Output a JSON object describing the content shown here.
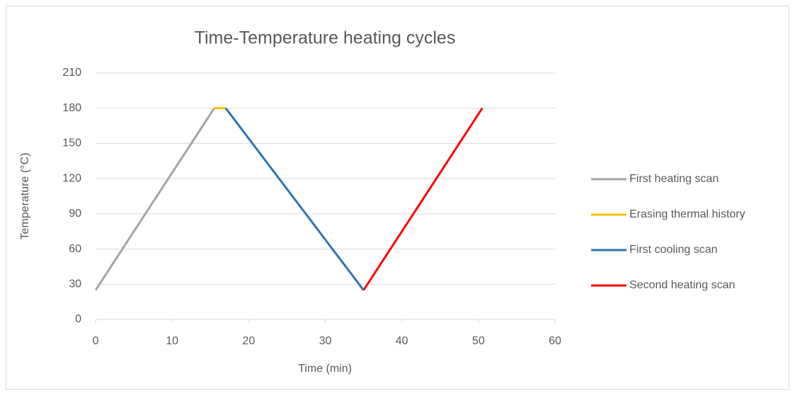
{
  "chart_data": {
    "type": "line",
    "title": "Time-Temperature heating cycles",
    "x_label": "Time (min)",
    "y_label": "Temperature (°C)",
    "series": [
      {
        "name": "First heating scan",
        "color": "#a5a5a5",
        "x": [
          0,
          15.5
        ],
        "values": [
          25,
          180
        ]
      },
      {
        "name": "Erasing thermal history",
        "color": "#ffc000",
        "x": [
          15.5,
          17
        ],
        "values": [
          180,
          180
        ]
      },
      {
        "name": "First cooling scan",
        "color": "#2e75b6",
        "x": [
          17,
          35
        ],
        "values": [
          180,
          25
        ]
      },
      {
        "name": "Second heating scan",
        "color": "#ff0000",
        "x": [
          35,
          50.5
        ],
        "values": [
          25,
          180
        ]
      }
    ],
    "xlim": [
      0,
      60
    ],
    "xticks": [
      0,
      10,
      20,
      30,
      40,
      50,
      60
    ],
    "ylim": [
      0,
      210
    ],
    "yticks": [
      0,
      30,
      60,
      90,
      120,
      150,
      180,
      210
    ],
    "grid": true,
    "legend": "right"
  }
}
